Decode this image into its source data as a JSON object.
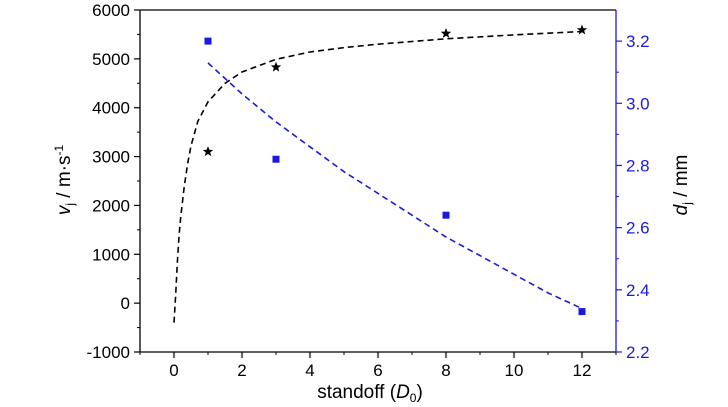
{
  "chart_data": {
    "type": "scatter",
    "xlabel": {
      "prefix": "standoff (",
      "var": "D",
      "sub": "0",
      "suffix": ")"
    },
    "ylabel_left": {
      "var": "v",
      "sub": "j",
      "unit": " / m·s",
      "sup": "-1"
    },
    "ylabel_right": {
      "var": "d",
      "sub": "j",
      "unit": " / mm"
    },
    "xlim": [
      -1,
      13
    ],
    "ylim_left": [
      -1000,
      6000
    ],
    "ylim_right": [
      2.2,
      3.3
    ],
    "x_ticks": [
      "0",
      "2",
      "4",
      "6",
      "8",
      "10",
      "12"
    ],
    "x_tick_values": [
      0,
      2,
      4,
      6,
      8,
      10,
      12
    ],
    "y_left_ticks": [
      "-1000",
      "0",
      "1000",
      "2000",
      "3000",
      "4000",
      "5000",
      "6000"
    ],
    "y_left_tick_values": [
      -1000,
      0,
      1000,
      2000,
      3000,
      4000,
      5000,
      6000
    ],
    "y_right_ticks": [
      "2.2",
      "2.4",
      "2.6",
      "2.8",
      "3.0",
      "3.2"
    ],
    "y_right_tick_values": [
      2.2,
      2.4,
      2.6,
      2.8,
      3.0,
      3.2
    ],
    "series": [
      {
        "axis": "left",
        "color": "#000000",
        "marker": "star",
        "x": [
          1,
          3,
          8,
          12
        ],
        "y": [
          3100,
          4830,
          5520,
          5590
        ],
        "fit": {
          "style": "dashed",
          "x": [
            0,
            0.05,
            0.1,
            0.15,
            0.2,
            0.3,
            0.4,
            0.5,
            0.7,
            1.0,
            1.5,
            2,
            3,
            4,
            5,
            6,
            8,
            10,
            12
          ],
          "y": [
            -400,
            180,
            850,
            1400,
            1780,
            2380,
            2850,
            3220,
            3720,
            4120,
            4500,
            4730,
            4990,
            5140,
            5230,
            5300,
            5410,
            5490,
            5560
          ]
        }
      },
      {
        "axis": "right",
        "color": "#1a1adf",
        "marker": "square",
        "x": [
          1,
          3,
          8,
          12
        ],
        "y": [
          3.2,
          2.82,
          2.64,
          2.33
        ],
        "fit": {
          "style": "dashed",
          "x": [
            1,
            2,
            3,
            4,
            5,
            6,
            7,
            8,
            9,
            10,
            11,
            12
          ],
          "y": [
            3.13,
            3.03,
            2.94,
            2.86,
            2.78,
            2.71,
            2.64,
            2.57,
            2.51,
            2.45,
            2.39,
            2.34
          ]
        }
      }
    ]
  }
}
